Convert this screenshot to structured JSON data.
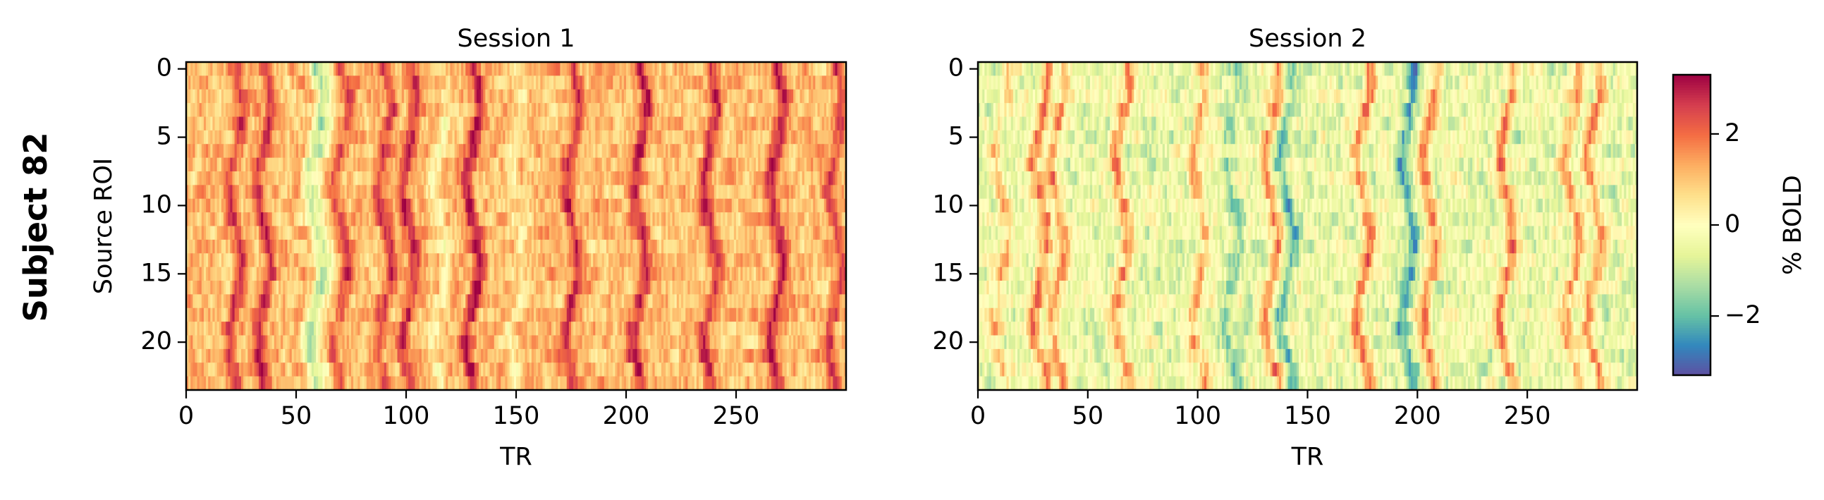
{
  "figure": {
    "row_label": "Subject 82"
  },
  "chart_data": [
    {
      "type": "heatmap",
      "title": "Session 1",
      "xlabel": "TR",
      "ylabel": "Source ROI",
      "x_ticks": [
        0,
        50,
        100,
        150,
        200,
        250
      ],
      "y_ticks": [
        0,
        5,
        10,
        15,
        20
      ],
      "x_range": [
        0,
        299
      ],
      "y_range": [
        0,
        23
      ],
      "n_timepoints": 300,
      "n_rois": 24,
      "baseline": 1.1,
      "noise_amplitude": 0.55,
      "peaks": [
        {
          "tr": 22,
          "amplitude": 1.4
        },
        {
          "tr": 35,
          "amplitude": 1.6
        },
        {
          "tr": 58,
          "amplitude": -2.0
        },
        {
          "tr": 62,
          "amplitude": -1.2
        },
        {
          "tr": 70,
          "amplitude": 1.2
        },
        {
          "tr": 90,
          "amplitude": 1.5
        },
        {
          "tr": 101,
          "amplitude": 1.7
        },
        {
          "tr": 115,
          "amplitude": -0.8
        },
        {
          "tr": 130,
          "amplitude": 2.0
        },
        {
          "tr": 150,
          "amplitude": -0.7
        },
        {
          "tr": 175,
          "amplitude": 1.7
        },
        {
          "tr": 206,
          "amplitude": 1.8
        },
        {
          "tr": 238,
          "amplitude": 1.6
        },
        {
          "tr": 268,
          "amplitude": 1.8
        },
        {
          "tr": 295,
          "amplitude": 1.4
        }
      ]
    },
    {
      "type": "heatmap",
      "title": "Session 2",
      "xlabel": "TR",
      "ylabel": "",
      "x_ticks": [
        0,
        50,
        100,
        150,
        200,
        250
      ],
      "y_ticks": [
        0,
        5,
        10,
        15,
        20
      ],
      "x_range": [
        0,
        299
      ],
      "y_range": [
        0,
        23
      ],
      "n_timepoints": 300,
      "n_rois": 24,
      "baseline": -0.4,
      "noise_amplitude": 0.7,
      "peaks": [
        {
          "tr": 10,
          "amplitude": 1.2
        },
        {
          "tr": 28,
          "amplitude": 2.2
        },
        {
          "tr": 36,
          "amplitude": 1.8
        },
        {
          "tr": 65,
          "amplitude": 1.9
        },
        {
          "tr": 100,
          "amplitude": 1.4
        },
        {
          "tr": 115,
          "amplitude": -1.0
        },
        {
          "tr": 133,
          "amplitude": 2.0
        },
        {
          "tr": 140,
          "amplitude": -1.4
        },
        {
          "tr": 175,
          "amplitude": 2.2
        },
        {
          "tr": 195,
          "amplitude": -1.8
        },
        {
          "tr": 205,
          "amplitude": 2.0
        },
        {
          "tr": 240,
          "amplitude": 2.2
        },
        {
          "tr": 270,
          "amplitude": 1.7
        },
        {
          "tr": 280,
          "amplitude": 2.0
        }
      ]
    }
  ],
  "colorbar": {
    "label": "% BOLD",
    "colormap": "Spectral_r",
    "vmin": -3.3,
    "vmax": 3.3,
    "ticks": [
      -2,
      0,
      2
    ],
    "tick_labels": [
      "−2",
      "0",
      "2"
    ]
  }
}
